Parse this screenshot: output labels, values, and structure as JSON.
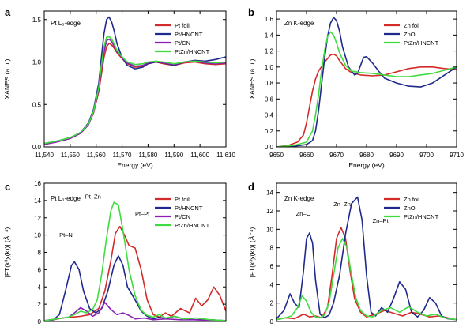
{
  "chart_data": [
    {
      "type": "line",
      "panel": "a",
      "edge_label": "Pt L₃-edge",
      "xlabel": "Energy (eV)",
      "ylabel": "XANES (a.u.)",
      "xlim": [
        11540,
        11610
      ],
      "ylim": [
        0,
        1.6
      ],
      "xticks": [
        11540,
        11550,
        11560,
        11570,
        11580,
        11590,
        11600,
        11610
      ],
      "xtick_labels": [
        "11,540",
        "11,550",
        "11,560",
        "11,570",
        "11,580",
        "11,590",
        "11,600",
        "11,610"
      ],
      "yticks": [
        0,
        0.5,
        1.0,
        1.5
      ],
      "ytick_labels": [
        "0.0",
        "0.5",
        "1.0",
        "1.5"
      ],
      "legend_position": "top-right",
      "grid": false,
      "annotations": [],
      "series": [
        {
          "name": "Pt foil",
          "color": "#d42a2a",
          "x": [
            11540,
            11545,
            11550,
            11554,
            11557,
            11559,
            11561,
            11562,
            11563,
            11564,
            11565,
            11566,
            11567,
            11568,
            11570,
            11572,
            11575,
            11578,
            11580,
            11583,
            11586,
            11590,
            11594,
            11598,
            11602,
            11606,
            11610
          ],
          "y": [
            0.03,
            0.06,
            0.1,
            0.16,
            0.26,
            0.4,
            0.65,
            0.85,
            1.05,
            1.18,
            1.22,
            1.2,
            1.16,
            1.11,
            1.04,
            0.98,
            0.94,
            0.95,
            0.98,
            1.0,
            0.98,
            0.96,
            0.99,
            1.0,
            0.98,
            0.97,
            0.98
          ]
        },
        {
          "name": "Pt/HNCNT",
          "color": "#1f2a8c",
          "x": [
            11540,
            11545,
            11550,
            11554,
            11557,
            11559,
            11561,
            11562,
            11563,
            11564,
            11565,
            11566,
            11567,
            11568,
            11570,
            11572,
            11575,
            11578,
            11580,
            11583,
            11586,
            11590,
            11594,
            11598,
            11602,
            11606,
            11610
          ],
          "y": [
            0.04,
            0.07,
            0.11,
            0.17,
            0.28,
            0.44,
            0.75,
            1.05,
            1.33,
            1.5,
            1.53,
            1.47,
            1.36,
            1.22,
            1.05,
            0.96,
            0.92,
            0.94,
            0.98,
            1.0,
            0.99,
            0.96,
            1.0,
            1.02,
            1.01,
            1.03,
            1.06
          ]
        },
        {
          "name": "Pt/CN",
          "color": "#8a1fb4",
          "x": [
            11540,
            11545,
            11550,
            11554,
            11557,
            11559,
            11561,
            11562,
            11563,
            11564,
            11565,
            11566,
            11567,
            11568,
            11570,
            11572,
            11575,
            11578,
            11580,
            11583,
            11586,
            11590,
            11594,
            11598,
            11602,
            11606,
            11610
          ],
          "y": [
            0.03,
            0.06,
            0.1,
            0.16,
            0.26,
            0.41,
            0.68,
            0.92,
            1.12,
            1.25,
            1.27,
            1.24,
            1.18,
            1.12,
            1.05,
            0.99,
            0.95,
            0.96,
            0.99,
            1.01,
            0.99,
            0.97,
            1.0,
            1.01,
            0.99,
            0.98,
            0.99
          ]
        },
        {
          "name": "PtZn/HNCNT",
          "color": "#3fdc3f",
          "x": [
            11540,
            11545,
            11550,
            11554,
            11557,
            11559,
            11561,
            11562,
            11563,
            11564,
            11565,
            11566,
            11567,
            11568,
            11570,
            11572,
            11575,
            11578,
            11580,
            11583,
            11586,
            11590,
            11594,
            11598,
            11602,
            11606,
            11610
          ],
          "y": [
            0.04,
            0.07,
            0.11,
            0.17,
            0.27,
            0.42,
            0.7,
            0.96,
            1.18,
            1.29,
            1.3,
            1.27,
            1.21,
            1.14,
            1.06,
            1.0,
            0.97,
            0.98,
            1.0,
            1.01,
            1.0,
            0.98,
            1.0,
            1.01,
            1.0,
            0.99,
            1.0
          ]
        }
      ]
    },
    {
      "type": "line",
      "panel": "b",
      "edge_label": "Zn K-edge",
      "xlabel": "Energy (eV)",
      "ylabel": "XANES (a.u.)",
      "xlim": [
        9650,
        9710
      ],
      "ylim": [
        0,
        1.7
      ],
      "xticks": [
        9650,
        9660,
        9670,
        9680,
        9690,
        9700,
        9710
      ],
      "xtick_labels": [
        "9650",
        "9660",
        "9670",
        "9680",
        "9690",
        "9700",
        "9710"
      ],
      "yticks": [
        0,
        0.2,
        0.4,
        0.6,
        0.8,
        1.0,
        1.2,
        1.4,
        1.6
      ],
      "ytick_labels": [
        "0.0",
        "0.2",
        "0.4",
        "0.6",
        "0.8",
        "1.0",
        "1.2",
        "1.4",
        "1.6"
      ],
      "legend_position": "top-right",
      "grid": false,
      "annotations": [],
      "series": [
        {
          "name": "Zn foil",
          "color": "#d42a2a",
          "x": [
            9650,
            9654,
            9657,
            9659,
            9660,
            9661,
            9662,
            9663,
            9664,
            9666,
            9668,
            9669,
            9670,
            9671,
            9673,
            9675,
            9678,
            9682,
            9686,
            9690,
            9694,
            9698,
            9702,
            9706,
            9710
          ],
          "y": [
            0.0,
            0.02,
            0.06,
            0.15,
            0.3,
            0.5,
            0.7,
            0.85,
            0.95,
            1.06,
            1.15,
            1.16,
            1.14,
            1.08,
            0.98,
            0.93,
            0.9,
            0.89,
            0.9,
            0.94,
            0.98,
            1.0,
            1.0,
            0.98,
            0.97
          ]
        },
        {
          "name": "ZnO",
          "color": "#1f2a8c",
          "x": [
            9650,
            9656,
            9660,
            9662,
            9663,
            9664,
            9665,
            9666,
            9667,
            9668,
            9669,
            9670,
            9671,
            9672,
            9674,
            9676,
            9677,
            9678,
            9679,
            9680,
            9682,
            9684,
            9686,
            9690,
            9694,
            9698,
            9702,
            9706,
            9710
          ],
          "y": [
            0.0,
            0.01,
            0.03,
            0.08,
            0.2,
            0.45,
            0.78,
            1.1,
            1.38,
            1.55,
            1.62,
            1.58,
            1.45,
            1.25,
            1.0,
            0.9,
            0.92,
            1.02,
            1.12,
            1.13,
            1.05,
            0.95,
            0.86,
            0.8,
            0.76,
            0.75,
            0.8,
            0.9,
            1.0
          ]
        },
        {
          "name": "PtZn/HNCNT",
          "color": "#3fdc3f",
          "x": [
            9650,
            9656,
            9660,
            9662,
            9663,
            9664,
            9665,
            9666,
            9667,
            9668,
            9669,
            9670,
            9671,
            9673,
            9675,
            9678,
            9682,
            9686,
            9690,
            9694,
            9698,
            9702,
            9706,
            9710
          ],
          "y": [
            0.0,
            0.02,
            0.06,
            0.2,
            0.4,
            0.65,
            0.95,
            1.2,
            1.38,
            1.44,
            1.4,
            1.3,
            1.18,
            1.02,
            0.95,
            0.93,
            0.92,
            0.9,
            0.88,
            0.88,
            0.9,
            0.92,
            0.96,
            1.0
          ]
        }
      ]
    },
    {
      "type": "line",
      "panel": "c",
      "edge_label": "Pt L₃-edge",
      "xlabel": "",
      "ylabel": "|FT(k³χ(k))| (Å⁻⁴)",
      "xlim": [
        0,
        6
      ],
      "ylim": [
        0,
        16
      ],
      "xticks": [],
      "xtick_labels": [],
      "yticks": [
        0,
        2,
        4,
        6,
        8,
        10,
        12,
        14,
        16
      ],
      "ytick_labels": [
        "0",
        "2",
        "4",
        "6",
        "8",
        "10",
        "12",
        "14",
        "16"
      ],
      "legend_position": "top-right",
      "grid": false,
      "annotations": [
        {
          "text": "Pt–Zn",
          "x": 1.35,
          "y": 14.2
        },
        {
          "text": "Pt–Pt",
          "x": 3.0,
          "y": 12.2
        },
        {
          "text": "Pt–N",
          "x": 0.5,
          "y": 9.8
        }
      ],
      "series": [
        {
          "name": "Pt foil",
          "color": "#d42a2a",
          "x": [
            0,
            0.3,
            0.6,
            0.9,
            1.2,
            1.5,
            1.8,
            2.0,
            2.2,
            2.35,
            2.5,
            2.65,
            2.8,
            3.0,
            3.2,
            3.4,
            3.6,
            3.8,
            4.0,
            4.2,
            4.5,
            4.8,
            5.0,
            5.2,
            5.4,
            5.6,
            5.8,
            6.0
          ],
          "y": [
            0.1,
            0.2,
            0.4,
            0.5,
            0.6,
            0.8,
            1.5,
            3.5,
            7.0,
            10.2,
            11.0,
            10.0,
            8.8,
            8.5,
            6.0,
            2.5,
            0.8,
            0.5,
            1.0,
            0.6,
            1.5,
            1.0,
            2.7,
            1.8,
            2.5,
            4.0,
            3.0,
            1.2
          ]
        },
        {
          "name": "Pt/HNCNT",
          "color": "#1f2a8c",
          "x": [
            0,
            0.3,
            0.5,
            0.7,
            0.9,
            1.0,
            1.15,
            1.3,
            1.5,
            1.7,
            1.9,
            2.1,
            2.3,
            2.45,
            2.6,
            2.75,
            3.0,
            3.2,
            3.4,
            3.6,
            3.8,
            4.0,
            4.3,
            4.6,
            5.0,
            5.5,
            6.0
          ],
          "y": [
            0.1,
            0.2,
            0.8,
            3.5,
            6.5,
            6.9,
            6.0,
            3.5,
            1.5,
            1.0,
            1.5,
            3.5,
            6.5,
            7.6,
            6.5,
            4.0,
            2.5,
            1.2,
            0.6,
            0.3,
            0.5,
            0.3,
            0.6,
            0.3,
            0.2,
            0.2,
            0.1
          ]
        },
        {
          "name": "Pt/CN",
          "color": "#8a1fb4",
          "x": [
            0,
            0.4,
            0.8,
            1.0,
            1.2,
            1.4,
            1.6,
            1.8,
            2.0,
            2.2,
            2.4,
            2.6,
            2.8,
            3.0,
            3.3,
            3.6,
            4.0,
            4.5,
            5.0,
            5.5,
            6.0
          ],
          "y": [
            0.1,
            0.3,
            0.5,
            1.0,
            1.6,
            1.2,
            0.6,
            1.0,
            2.2,
            1.4,
            0.8,
            1.0,
            0.7,
            0.3,
            0.4,
            0.2,
            0.3,
            0.2,
            0.2,
            0.1,
            0.1
          ]
        },
        {
          "name": "PtZn/HNCNT",
          "color": "#3fdc3f",
          "x": [
            0,
            0.4,
            0.8,
            1.0,
            1.2,
            1.4,
            1.6,
            1.75,
            1.9,
            2.05,
            2.2,
            2.3,
            2.45,
            2.6,
            2.8,
            3.0,
            3.2,
            3.4,
            3.6,
            3.8,
            4.0,
            4.3,
            4.6,
            5.0,
            5.5,
            6.0
          ],
          "y": [
            0.1,
            0.3,
            0.5,
            0.8,
            1.2,
            1.0,
            1.4,
            2.5,
            5.5,
            9.5,
            12.8,
            13.8,
            13.5,
            10.5,
            6.0,
            3.0,
            1.3,
            0.7,
            0.5,
            0.8,
            0.4,
            0.6,
            0.3,
            0.4,
            0.2,
            0.1
          ]
        }
      ]
    },
    {
      "type": "line",
      "panel": "d",
      "edge_label": "Zn K-edge",
      "xlabel": "",
      "ylabel": "|FT(k³χ(k))| (Å⁻⁴)",
      "xlim": [
        0,
        6
      ],
      "ylim": [
        0,
        15
      ],
      "xticks": [],
      "xtick_labels": [],
      "yticks": [
        0,
        2,
        4,
        6,
        8,
        10,
        12,
        14
      ],
      "ytick_labels": [
        "0",
        "2",
        "4",
        "6",
        "8",
        "10",
        "12",
        "14"
      ],
      "legend_position": "top-right",
      "grid": false,
      "annotations": [
        {
          "text": "Zn–O",
          "x": 0.65,
          "y": 11.5
        },
        {
          "text": "Zn–Zn",
          "x": 1.9,
          "y": 12.5
        },
        {
          "text": "Zn–Pt",
          "x": 3.2,
          "y": 10.7
        }
      ],
      "series": [
        {
          "name": "Zn foil",
          "color": "#d42a2a",
          "x": [
            0,
            0.3,
            0.6,
            0.9,
            1.1,
            1.3,
            1.5,
            1.7,
            1.85,
            2.0,
            2.15,
            2.3,
            2.45,
            2.6,
            2.8,
            3.0,
            3.3,
            3.6,
            3.9,
            4.2,
            4.5,
            4.8,
            5.1,
            5.4,
            5.7,
            6.0
          ],
          "y": [
            0.2,
            0.4,
            0.3,
            0.8,
            0.5,
            0.6,
            0.4,
            1.5,
            5.0,
            9.0,
            10.2,
            9.0,
            5.5,
            2.5,
            1.0,
            0.5,
            0.8,
            1.2,
            0.9,
            0.6,
            1.0,
            0.8,
            0.5,
            0.6,
            0.4,
            0.2
          ]
        },
        {
          "name": "ZnO",
          "color": "#1f2a8c",
          "x": [
            0,
            0.25,
            0.45,
            0.6,
            0.75,
            0.9,
            1.0,
            1.1,
            1.2,
            1.3,
            1.45,
            1.6,
            1.75,
            1.9,
            2.1,
            2.3,
            2.5,
            2.7,
            2.85,
            3.0,
            3.15,
            3.3,
            3.5,
            3.7,
            3.9,
            4.1,
            4.3,
            4.5,
            4.7,
            4.9,
            5.1,
            5.3,
            5.5,
            5.7,
            6.0
          ],
          "y": [
            0.3,
            1.2,
            3.0,
            2.0,
            1.5,
            5.5,
            9.0,
            9.6,
            8.5,
            4.5,
            0.8,
            0.4,
            0.7,
            2.0,
            5.0,
            9.5,
            12.8,
            13.5,
            11.0,
            5.0,
            1.0,
            0.6,
            1.5,
            1.0,
            2.5,
            4.3,
            3.5,
            1.0,
            0.5,
            1.2,
            2.6,
            2.0,
            0.6,
            0.3,
            0.2
          ]
        },
        {
          "name": "PtZn/HNCNT",
          "color": "#3fdc3f",
          "x": [
            0,
            0.3,
            0.5,
            0.7,
            0.85,
            1.0,
            1.15,
            1.3,
            1.45,
            1.6,
            1.75,
            1.9,
            2.05,
            2.2,
            2.35,
            2.5,
            2.65,
            2.8,
            3.0,
            3.2,
            3.5,
            3.8,
            4.1,
            4.4,
            4.7,
            5.0,
            5.3,
            5.6,
            6.0
          ],
          "y": [
            0.2,
            0.4,
            0.6,
            1.5,
            2.8,
            2.2,
            1.0,
            0.5,
            0.4,
            0.7,
            2.0,
            5.0,
            8.0,
            9.0,
            8.0,
            5.0,
            2.5,
            1.2,
            0.6,
            0.5,
            1.2,
            1.5,
            1.0,
            1.6,
            1.0,
            0.6,
            0.8,
            0.4,
            0.2
          ]
        }
      ]
    }
  ]
}
